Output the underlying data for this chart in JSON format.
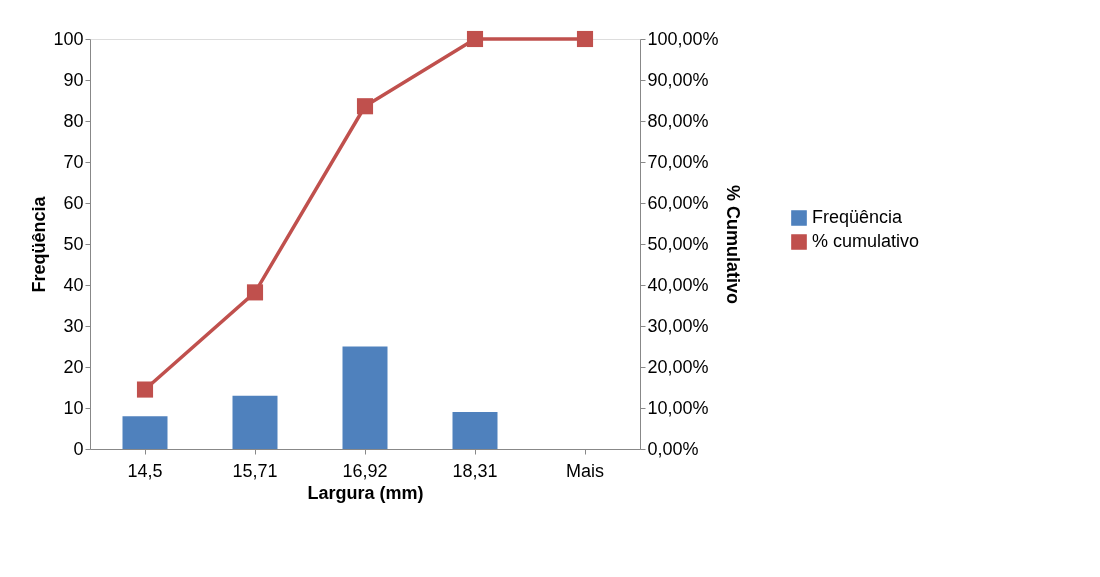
{
  "chart_data": {
    "type": "bar",
    "xlabel": "Largura (mm)",
    "ylabel": "Freqüência",
    "y2label": "% Cumulativo",
    "categories": [
      "14,5",
      "15,71",
      "16,92",
      "18,31",
      "Mais"
    ],
    "series": [
      {
        "name": "Freqüência",
        "color": "#4f81bd",
        "values": [
          8,
          13,
          25,
          9,
          0
        ]
      },
      {
        "name": "% cumulativo",
        "type": "line",
        "axis": "y2",
        "color": "#c0504d",
        "marker": "square",
        "values": [
          14.5,
          38.2,
          83.6,
          100,
          100
        ]
      }
    ],
    "ylim": [
      0,
      100
    ],
    "yticks": [
      0,
      10,
      20,
      30,
      40,
      50,
      60,
      70,
      80,
      90,
      100
    ],
    "y2lim": [
      0,
      100
    ],
    "y2ticks": [
      {
        "value": 0,
        "label": "0,00%"
      },
      {
        "value": 10,
        "label": "10,00%"
      },
      {
        "value": 20,
        "label": "20,00%"
      },
      {
        "value": 30,
        "label": "30,00%"
      },
      {
        "value": 40,
        "label": "40,00%"
      },
      {
        "value": 50,
        "label": "50,00%"
      },
      {
        "value": 60,
        "label": "60,00%"
      },
      {
        "value": 70,
        "label": "70,00%"
      },
      {
        "value": 80,
        "label": "80,00%"
      },
      {
        "value": 90,
        "label": "90,00%"
      },
      {
        "value": 100,
        "label": "100,00%"
      }
    ],
    "grid": false,
    "legend": "right"
  }
}
